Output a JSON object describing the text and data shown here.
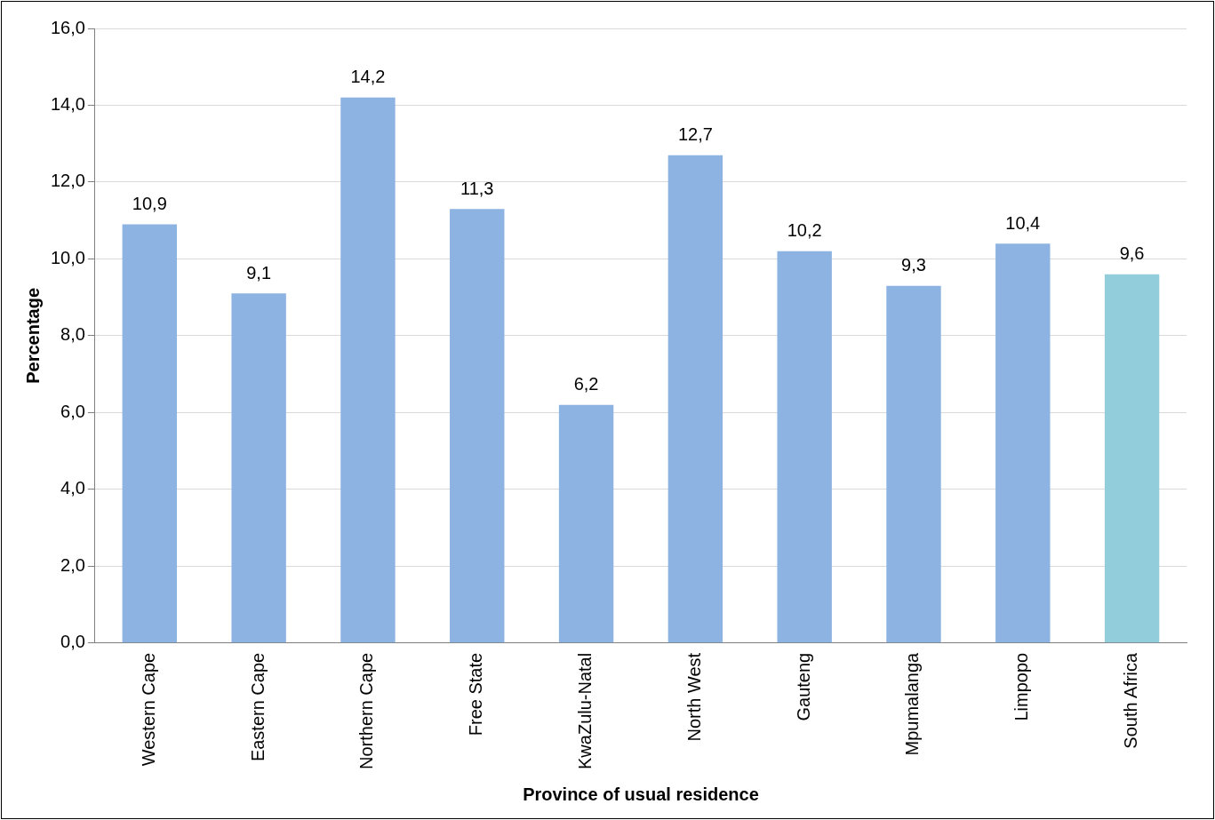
{
  "chart_data": {
    "type": "bar",
    "xlabel": "Province of usual residence",
    "ylabel": "Percentage",
    "categories": [
      "Western Cape",
      "Eastern Cape",
      "Northern Cape",
      "Free State",
      "KwaZulu-Natal",
      "North West",
      "Gauteng",
      "Mpumalanga",
      "Limpopo",
      "South Africa"
    ],
    "values": [
      10.9,
      9.1,
      14.2,
      11.3,
      6.2,
      12.7,
      10.2,
      9.3,
      10.4,
      9.6
    ],
    "colors": [
      "#8db3e2",
      "#8db3e2",
      "#8db3e2",
      "#8db3e2",
      "#8db3e2",
      "#8db3e2",
      "#8db3e2",
      "#8db3e2",
      "#8db3e2",
      "#92cddc"
    ],
    "value_labels": [
      "10,9",
      "9,1",
      "14,2",
      "11,3",
      "6,2",
      "12,7",
      "10,2",
      "9,3",
      "10,4",
      "9,6"
    ],
    "ylim": [
      0,
      16
    ],
    "yticks": [
      {
        "value": 0,
        "label": "0,0"
      },
      {
        "value": 2,
        "label": "2,0"
      },
      {
        "value": 4,
        "label": "4,0"
      },
      {
        "value": 6,
        "label": "6,0"
      },
      {
        "value": 8,
        "label": "8,0"
      },
      {
        "value": 10,
        "label": "10,0"
      },
      {
        "value": 12,
        "label": "12,0"
      },
      {
        "value": 14,
        "label": "14,0"
      },
      {
        "value": 16,
        "label": "16,0"
      }
    ],
    "grid": "y",
    "legend": false
  }
}
